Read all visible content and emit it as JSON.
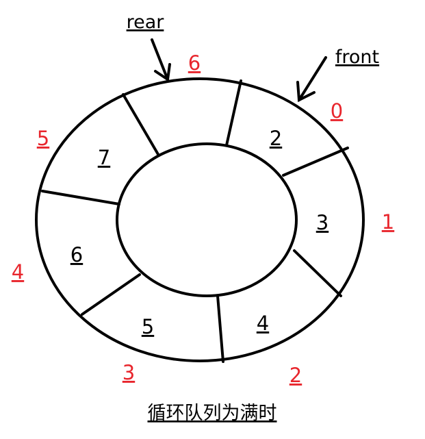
{
  "pointers": {
    "rear": "rear",
    "front": "front"
  },
  "slots": [
    {
      "index": "0",
      "value": "2"
    },
    {
      "index": "1",
      "value": "3"
    },
    {
      "index": "2",
      "value": "4"
    },
    {
      "index": "3",
      "value": "5"
    },
    {
      "index": "4",
      "value": "6"
    },
    {
      "index": "5",
      "value": "7"
    },
    {
      "index": "6",
      "value": ""
    }
  ],
  "caption": "循环队列为满时",
  "colors": {
    "line": "#000000",
    "index_text": "#e8262d",
    "value_text": "#000000"
  }
}
